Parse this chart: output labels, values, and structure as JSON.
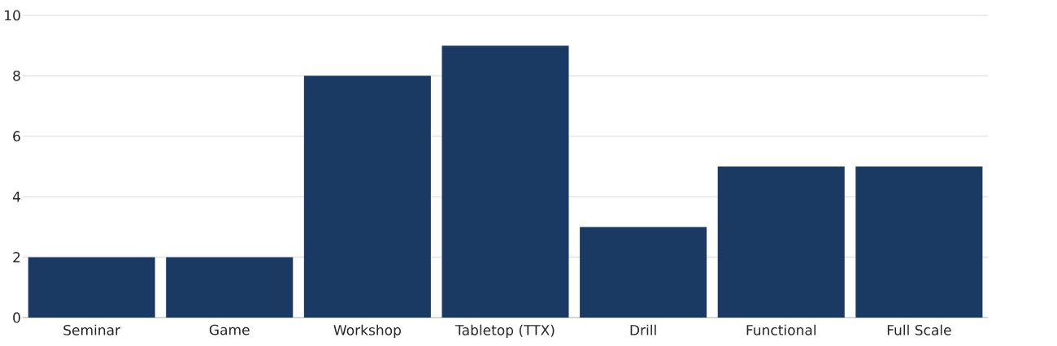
{
  "chart_data": {
    "type": "bar",
    "categories": [
      "Seminar",
      "Game",
      "Workshop",
      "Tabletop (TTX)",
      "Drill",
      "Functional",
      "Full Scale"
    ],
    "values": [
      2,
      2,
      8,
      9,
      3,
      5,
      5
    ],
    "color": "#1b3a63",
    "ylim": [
      0,
      10
    ],
    "yticks": [
      0,
      2,
      4,
      6,
      8,
      10
    ],
    "grid": "y"
  }
}
